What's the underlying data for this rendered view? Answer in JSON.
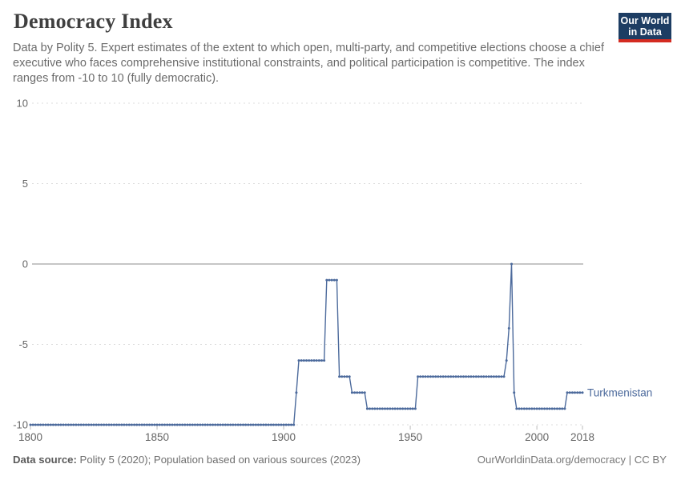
{
  "header": {
    "title": "Democracy Index",
    "logo": {
      "line1": "Our World",
      "line2": "in Data"
    }
  },
  "subtitle": "Data by Polity 5. Expert estimates of the extent to which open, multi-party, and competitive elections choose a chief executive who faces comprehensive institutional constraints, and political participation is competitive. The index ranges from -10 to 10 (fully democratic).",
  "footer": {
    "source_label": "Data source:",
    "source_value": " Polity 5 (2020); Population based on various sources (2023)",
    "credit": "OurWorldinData.org/democracy | CC BY"
  },
  "colors": {
    "series": "#4C6A9C",
    "grid": "#dcdcdc",
    "zero_line": "#a3a3a3",
    "axis_text": "#666666",
    "logo_bg": "#1d3d63",
    "logo_red": "#d42b21"
  },
  "chart_data": {
    "type": "line",
    "title": "Democracy Index",
    "entity_label": "Turkmenistan",
    "legend_position": "right-of-line-end",
    "grid": "dashed horizontal",
    "xlim": [
      1800,
      2018
    ],
    "ylim": [
      -10,
      10
    ],
    "x_ticks": [
      1800,
      1850,
      1900,
      1950,
      2000,
      2018
    ],
    "y_ticks": [
      10,
      5,
      0,
      -5,
      -10
    ],
    "series": [
      {
        "name": "Turkmenistan",
        "value_segments": [
          {
            "from": 1800,
            "to": 1904,
            "value": -10
          },
          {
            "from": 1905,
            "to": 1905,
            "value": -8
          },
          {
            "from": 1906,
            "to": 1916,
            "value": -6
          },
          {
            "from": 1917,
            "to": 1921,
            "value": -1
          },
          {
            "from": 1922,
            "to": 1926,
            "value": -7
          },
          {
            "from": 1927,
            "to": 1932,
            "value": -8
          },
          {
            "from": 1933,
            "to": 1952,
            "value": -9
          },
          {
            "from": 1953,
            "to": 1987,
            "value": -7
          },
          {
            "from": 1988,
            "to": 1988,
            "value": -6
          },
          {
            "from": 1989,
            "to": 1989,
            "value": -4
          },
          {
            "from": 1990,
            "to": 1990,
            "value": 0
          },
          {
            "from": 1991,
            "to": 1991,
            "value": -8
          },
          {
            "from": 1992,
            "to": 2011,
            "value": -9
          },
          {
            "from": 2012,
            "to": 2018,
            "value": -8
          }
        ]
      }
    ]
  }
}
